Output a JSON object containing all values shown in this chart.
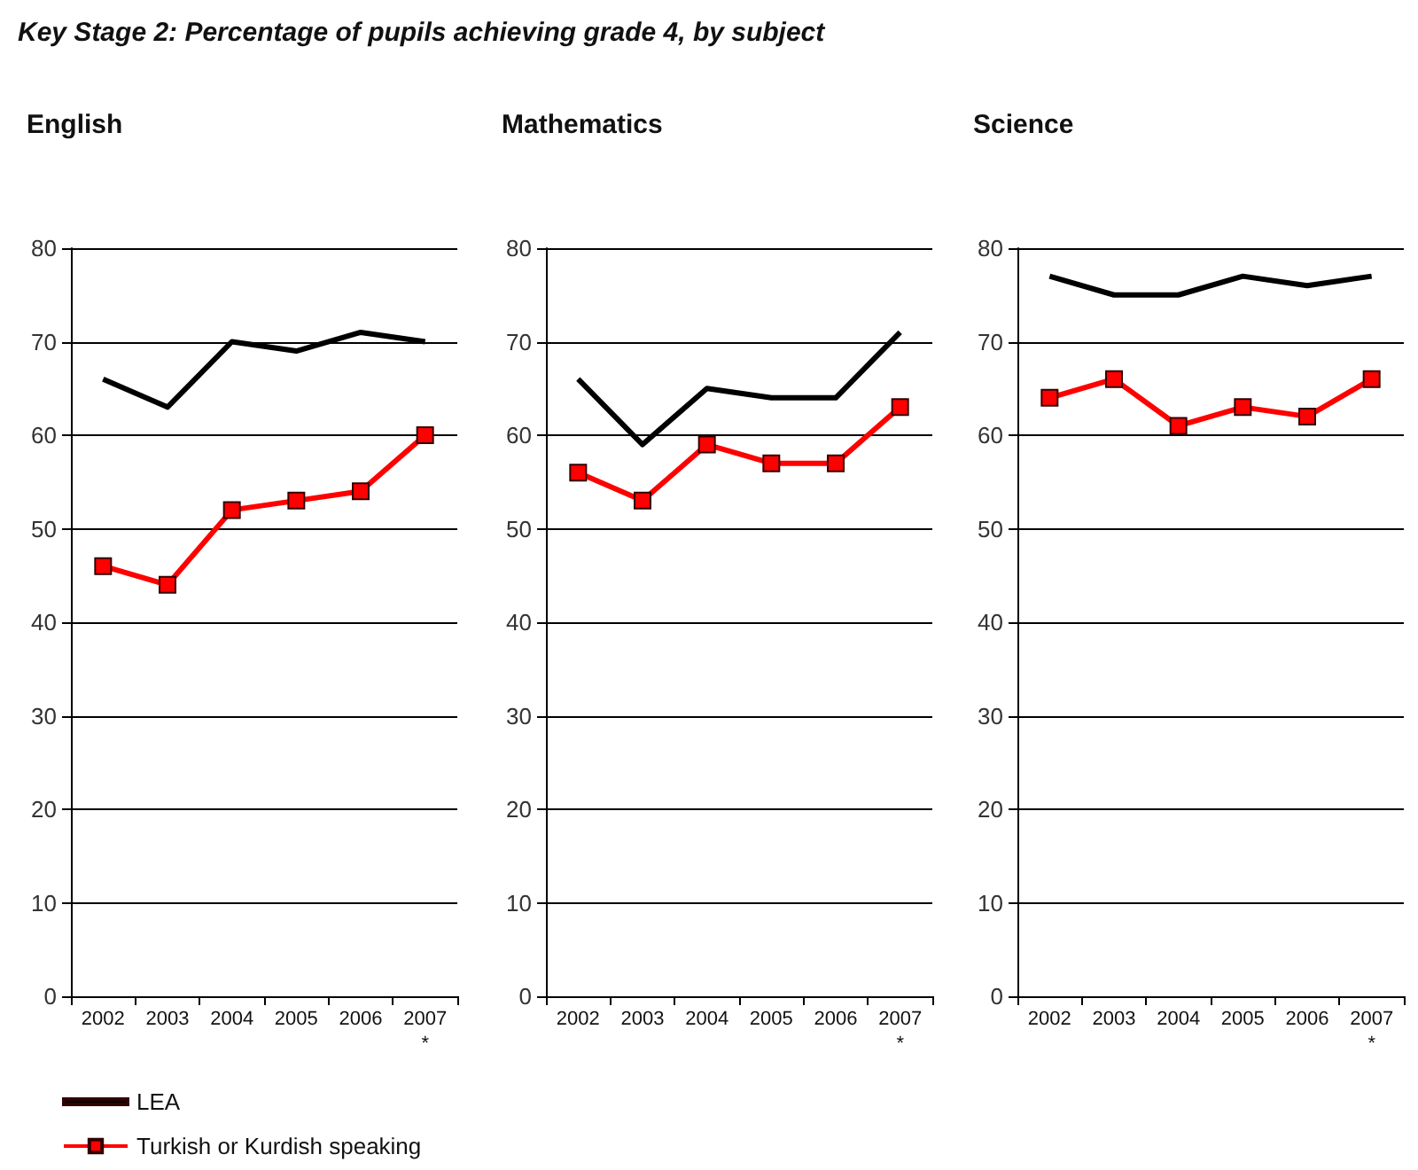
{
  "chart_data": [
    {
      "type": "line",
      "title": "English",
      "annotations": [
        "Key Stage 2: Percentage of pupils achieving grade 4, by subject"
      ],
      "categories": [
        "2002",
        "2003",
        "2004",
        "2005",
        "2006",
        "2007\n*"
      ],
      "series": [
        {
          "name": "LEA",
          "color": "#000000",
          "marker": "none",
          "values": [
            66,
            63,
            70,
            69,
            71,
            70
          ]
        },
        {
          "name": "Turkish or Kurdish speaking",
          "color": "#ff0000",
          "marker": "square",
          "values": [
            46,
            44,
            52,
            53,
            54,
            60
          ]
        }
      ],
      "ylim": [
        0,
        80
      ],
      "yticks": [
        0,
        10,
        20,
        30,
        40,
        50,
        60,
        70,
        80
      ],
      "grid": "y",
      "legend": "bottom left"
    },
    {
      "type": "line",
      "title": "Mathematics",
      "categories": [
        "2002",
        "2003",
        "2004",
        "2005",
        "2006",
        "2007\n*"
      ],
      "series": [
        {
          "color": "#000000",
          "marker": "none",
          "values": [
            66,
            59,
            65,
            64,
            64,
            71
          ]
        },
        {
          "color": "#ff0000",
          "marker": "square",
          "values": [
            56,
            53,
            59,
            57,
            57,
            63
          ]
        }
      ],
      "ylim": [
        0,
        80
      ],
      "yticks": [
        0,
        10,
        20,
        30,
        40,
        50,
        60,
        70,
        80
      ],
      "grid": "y",
      "legend": false
    },
    {
      "type": "line",
      "title": "Science",
      "categories": [
        "2002",
        "2003",
        "2004",
        "2005",
        "2006",
        "2007\n*"
      ],
      "series": [
        {
          "color": "#000000",
          "marker": "none",
          "values": [
            77,
            75,
            75,
            77,
            76,
            77
          ]
        },
        {
          "color": "#ff0000",
          "marker": "square",
          "values": [
            64,
            66,
            61,
            63,
            62,
            66
          ]
        }
      ],
      "ylim": [
        0,
        80
      ],
      "yticks": [
        0,
        10,
        20,
        30,
        40,
        50,
        60,
        70,
        80
      ],
      "grid": "y",
      "legend": false
    }
  ]
}
